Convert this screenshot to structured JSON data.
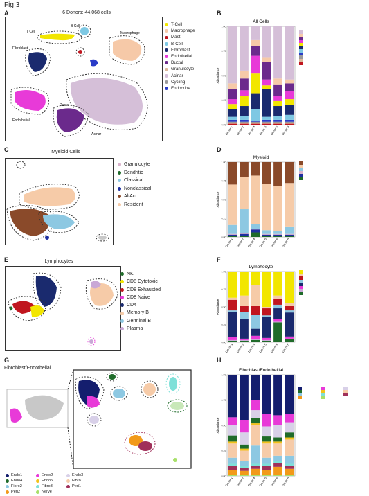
{
  "figure": {
    "title": "Fig 3"
  },
  "panels": {
    "A": {
      "letter": "A",
      "title": "6 Donors: 44,068 cells",
      "labels": [
        "T Cell",
        "B Cell",
        "Macrophage",
        "Fibroblast",
        "Endothelial",
        "Ductal",
        "Acinar"
      ],
      "legend": [
        {
          "label": "T-Cell",
          "color": "#f2e600"
        },
        {
          "label": "Macrophage",
          "color": "#f6c9a8"
        },
        {
          "label": "Mast",
          "color": "#c0161f"
        },
        {
          "label": "B-Cell",
          "color": "#7ec8e3"
        },
        {
          "label": "Fibroblast",
          "color": "#1a2a6e"
        },
        {
          "label": "Endothelial",
          "color": "#e83ad8"
        },
        {
          "label": "Ductal",
          "color": "#6b2a8c"
        },
        {
          "label": "Granulocyte",
          "color": "#dcb89a"
        },
        {
          "label": "Acinar",
          "color": "#d5bfd8"
        },
        {
          "label": "Cycling",
          "color": "#9a9a9a"
        },
        {
          "label": "Endocrine",
          "color": "#2a3cc8"
        }
      ]
    },
    "C": {
      "letter": "C",
      "title": "Myeloid Cells",
      "legend": [
        {
          "label": "Granulocyte",
          "color": "#d9b2cc"
        },
        {
          "label": "Dendritic",
          "color": "#1f6b2a"
        },
        {
          "label": "Classical",
          "color": "#8dc8e2"
        },
        {
          "label": "Nonclassical",
          "color": "#1e2fa0"
        },
        {
          "label": "AltAct",
          "color": "#8a4a2a"
        },
        {
          "label": "Resident",
          "color": "#f6cba8"
        }
      ]
    },
    "E": {
      "letter": "E",
      "title": "Lymphocytes",
      "legend": [
        {
          "label": "NK",
          "color": "#1f6b2a"
        },
        {
          "label": "CD8 Cytotoxic",
          "color": "#f2e600"
        },
        {
          "label": "CD8 Exhausted",
          "color": "#c0161f"
        },
        {
          "label": "CD8 Naive",
          "color": "#e83ad8"
        },
        {
          "label": "CD4",
          "color": "#1a2a6e"
        },
        {
          "label": "Memory B",
          "color": "#f6cba8"
        },
        {
          "label": "Germinal B",
          "color": "#8dc8e2"
        },
        {
          "label": "Plasma",
          "color": "#c9a8d6"
        }
      ]
    },
    "G": {
      "letter": "G",
      "title": "Fibroblast/Endothelial",
      "legend": [
        {
          "label": "Endo1",
          "color": "#141e6e"
        },
        {
          "label": "Endo2",
          "color": "#e83ad8"
        },
        {
          "label": "Endo3",
          "color": "#d8d0e8"
        },
        {
          "label": "Endo4",
          "color": "#1f6b2a"
        },
        {
          "label": "Endo5",
          "color": "#f2c21a"
        },
        {
          "label": "Fibro1",
          "color": "#f6cba8"
        },
        {
          "label": "Fibro2",
          "color": "#8dc8e2"
        },
        {
          "label": "Fibro3",
          "color": "#7ee0d8"
        },
        {
          "label": "Peri1",
          "color": "#a0305a"
        },
        {
          "label": "Peri2",
          "color": "#f29a1a"
        },
        {
          "label": "Nerve",
          "color": "#a8e06a"
        }
      ]
    },
    "B": {
      "letter": "B"
    },
    "D": {
      "letter": "D"
    },
    "F": {
      "letter": "F"
    },
    "H": {
      "letter": "H"
    }
  },
  "chart_data": [
    {
      "id": "B",
      "type": "bar",
      "title": "All Cells",
      "ylabel": "Abundance",
      "xlabel": "",
      "ylim": [
        0,
        1
      ],
      "yticks": [
        "0.00",
        "0.25",
        "0.50",
        "0.75",
        "1.00"
      ],
      "categories": [
        "Donor 1",
        "Donor 2",
        "Donor 4",
        "Donor 5",
        "Donor 6",
        "Donor 8"
      ],
      "series": [
        {
          "name": "Mast",
          "color": "#c0161f",
          "values": [
            0.01,
            0.01,
            0.01,
            0.01,
            0.01,
            0.01
          ]
        },
        {
          "name": "Granulocyte",
          "color": "#dcb89a",
          "values": [
            0.01,
            0.01,
            0.01,
            0.01,
            0.01,
            0.01
          ]
        },
        {
          "name": "Cycling",
          "color": "#9a9a9a",
          "values": [
            0.01,
            0.01,
            0.01,
            0.01,
            0.01,
            0.01
          ]
        },
        {
          "name": "Endocrine",
          "color": "#2a3cc8",
          "values": [
            0.02,
            0.02,
            0.01,
            0.02,
            0.02,
            0.02
          ]
        },
        {
          "name": "B-Cell",
          "color": "#7ec8e3",
          "values": [
            0.03,
            0.04,
            0.12,
            0.03,
            0.04,
            0.05
          ]
        },
        {
          "name": "Fibroblast",
          "color": "#1a2a6e",
          "values": [
            0.08,
            0.1,
            0.16,
            0.28,
            0.1,
            0.1
          ]
        },
        {
          "name": "T-Cell",
          "color": "#f2e600",
          "values": [
            0.05,
            0.1,
            0.2,
            0.04,
            0.05,
            0.06
          ]
        },
        {
          "name": "Endothelial",
          "color": "#e83ad8",
          "values": [
            0.05,
            0.06,
            0.18,
            0.06,
            0.05,
            0.08
          ]
        },
        {
          "name": "Ductal",
          "color": "#6b2a8c",
          "values": [
            0.1,
            0.12,
            0.1,
            0.18,
            0.12,
            0.08
          ]
        },
        {
          "name": "Macrophage",
          "color": "#f6c9a8",
          "values": [
            0.06,
            0.08,
            0.06,
            0.04,
            0.06,
            0.04
          ]
        },
        {
          "name": "Acinar",
          "color": "#d5bfd8",
          "values": [
            0.58,
            0.45,
            0.14,
            0.32,
            0.53,
            0.54
          ]
        }
      ]
    },
    {
      "id": "D",
      "type": "bar",
      "title": "Myeloid",
      "ylabel": "Abundance",
      "xlabel": "",
      "ylim": [
        0,
        1
      ],
      "yticks": [
        "0.00",
        "0.25",
        "0.50",
        "0.75",
        "1.00"
      ],
      "categories": [
        "Donor 1",
        "Donor 2",
        "Donor 4",
        "Donor 5",
        "Donor 6",
        "Donor 8"
      ],
      "series": [
        {
          "name": "Dendritic",
          "color": "#1f6b2a",
          "values": [
            0.01,
            0.01,
            0.06,
            0.01,
            0.01,
            0.01
          ]
        },
        {
          "name": "Nonclassical",
          "color": "#1e2fa0",
          "values": [
            0.02,
            0.03,
            0.04,
            0.02,
            0.02,
            0.02
          ]
        },
        {
          "name": "Granulocyte",
          "color": "#d9b2cc",
          "values": [
            0.01,
            0.01,
            0.01,
            0.01,
            0.01,
            0.01
          ]
        },
        {
          "name": "Classical",
          "color": "#8dc8e2",
          "values": [
            0.12,
            0.32,
            0.06,
            0.05,
            0.04,
            0.1
          ]
        },
        {
          "name": "Resident",
          "color": "#f6cba8",
          "values": [
            0.54,
            0.43,
            0.65,
            0.62,
            0.6,
            0.58
          ]
        },
        {
          "name": "AltAct",
          "color": "#8a4a2a",
          "values": [
            0.3,
            0.2,
            0.18,
            0.29,
            0.32,
            0.28
          ]
        }
      ]
    },
    {
      "id": "F",
      "type": "bar",
      "title": "Lymphocyte",
      "ylabel": "Abundance",
      "xlabel": "",
      "ylim": [
        0,
        1
      ],
      "yticks": [
        "0.00",
        "0.25",
        "0.50",
        "0.75",
        "1.00"
      ],
      "categories": [
        "Donor 1",
        "Donor 2",
        "Donor 4",
        "Donor 5",
        "Donor 6",
        "Donor 8"
      ],
      "series": [
        {
          "name": "NK",
          "color": "#1f6b2a",
          "values": [
            0.02,
            0.02,
            0.03,
            0.02,
            0.28,
            0.04
          ]
        },
        {
          "name": "Plasma",
          "color": "#c9a8d6",
          "values": [
            0.01,
            0.01,
            0.01,
            0.01,
            0.01,
            0.01
          ]
        },
        {
          "name": "CD8 Naive",
          "color": "#e83ad8",
          "values": [
            0.04,
            0.02,
            0.05,
            0.03,
            0.04,
            0.03
          ]
        },
        {
          "name": "CD4",
          "color": "#1a2a6e",
          "values": [
            0.36,
            0.28,
            0.1,
            0.3,
            0.15,
            0.34
          ]
        },
        {
          "name": "Germinal B",
          "color": "#8dc8e2",
          "values": [
            0.02,
            0.1,
            0.2,
            0.02,
            0.05,
            0.03
          ]
        },
        {
          "name": "CD8 Exhausted",
          "color": "#c0161f",
          "values": [
            0.15,
            0.08,
            0.12,
            0.1,
            0.08,
            0.06
          ]
        },
        {
          "name": "Memory B",
          "color": "#f6cba8",
          "values": [
            0.03,
            0.15,
            0.3,
            0.02,
            0.05,
            0.04
          ]
        },
        {
          "name": "CD8 Cytotoxic",
          "color": "#f2e600",
          "values": [
            0.37,
            0.34,
            0.19,
            0.5,
            0.34,
            0.45
          ]
        }
      ]
    },
    {
      "id": "H",
      "type": "bar",
      "title": "Fibroblast/Endotheliial",
      "ylabel": "Abundance",
      "xlabel": "",
      "ylim": [
        0,
        1
      ],
      "yticks": [
        "0.00",
        "0.25",
        "0.50",
        "0.75",
        "1.00"
      ],
      "categories": [
        "Donor 1",
        "Donor 2",
        "Donor 4",
        "Donor 5",
        "Donor 6",
        "Donor 8"
      ],
      "series": [
        {
          "name": "Nerve",
          "color": "#a8e06a",
          "values": [
            0.01,
            0.01,
            0.01,
            0.01,
            0.01,
            0.01
          ]
        },
        {
          "name": "Peri2",
          "color": "#f29a1a",
          "values": [
            0.05,
            0.04,
            0.06,
            0.05,
            0.08,
            0.06
          ]
        },
        {
          "name": "Peri1",
          "color": "#a0305a",
          "values": [
            0.04,
            0.03,
            0.03,
            0.04,
            0.04,
            0.03
          ]
        },
        {
          "name": "Fibro3",
          "color": "#7ee0d8",
          "values": [
            0.02,
            0.02,
            0.02,
            0.02,
            0.02,
            0.02
          ]
        },
        {
          "name": "Fibro2",
          "color": "#8dc8e2",
          "values": [
            0.06,
            0.05,
            0.18,
            0.06,
            0.05,
            0.08
          ]
        },
        {
          "name": "Fibro1",
          "color": "#f6cba8",
          "values": [
            0.14,
            0.1,
            0.2,
            0.14,
            0.12,
            0.16
          ]
        },
        {
          "name": "Endo5",
          "color": "#f2c21a",
          "values": [
            0.02,
            0.02,
            0.02,
            0.02,
            0.02,
            0.02
          ]
        },
        {
          "name": "Endo4",
          "color": "#1f6b2a",
          "values": [
            0.06,
            0.04,
            0.05,
            0.05,
            0.04,
            0.05
          ]
        },
        {
          "name": "Endo3",
          "color": "#d8d0e8",
          "values": [
            0.1,
            0.12,
            0.08,
            0.1,
            0.12,
            0.1
          ]
        },
        {
          "name": "Endo2",
          "color": "#e83ad8",
          "values": [
            0.08,
            0.12,
            0.1,
            0.12,
            0.1,
            0.08
          ]
        },
        {
          "name": "Endo1",
          "color": "#141e6e",
          "values": [
            0.42,
            0.45,
            0.25,
            0.39,
            0.4,
            0.39
          ]
        }
      ]
    }
  ]
}
